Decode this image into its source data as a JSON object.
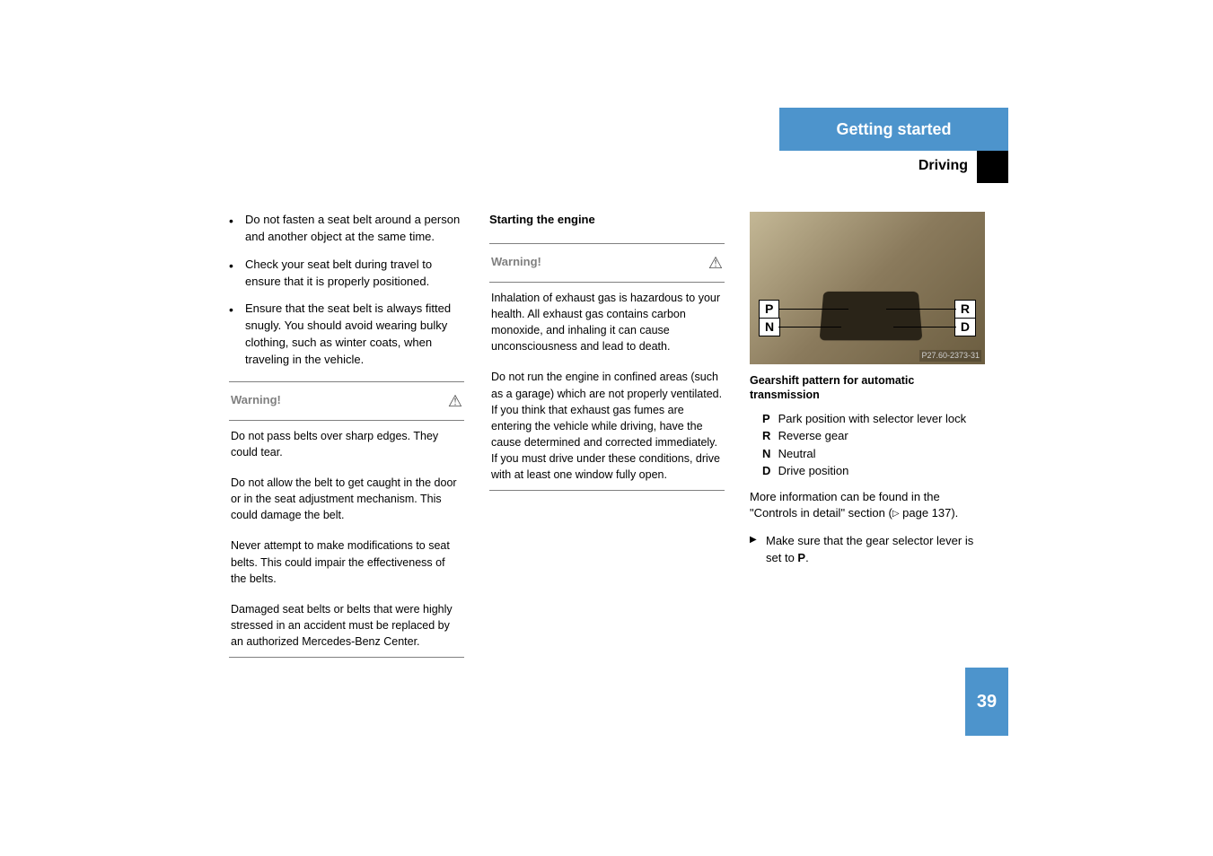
{
  "header": {
    "chapter": "Getting started",
    "section": "Driving"
  },
  "col1": {
    "bullets": [
      "Do not fasten a seat belt around a person and another object at the same time.",
      "Check your seat belt during travel to ensure that it is properly positioned.",
      "Ensure that the seat belt is always fitted snugly. You should avoid wearing bulky clothing, such as winter coats, when traveling in the vehicle."
    ],
    "warning": {
      "label": "Warning!",
      "paras": [
        "Do not pass belts over sharp edges. They could tear.",
        "Do not allow the belt to get caught in the door or in the seat adjustment mechanism. This could damage the belt.",
        "Never attempt to make modifications to seat belts. This could impair the effectiveness of the belts.",
        "Damaged seat belts or belts that were highly stressed in an accident must be replaced by an authorized Mercedes-Benz Center."
      ]
    }
  },
  "col2": {
    "title": "Starting the engine",
    "warning": {
      "label": "Warning!",
      "paras": [
        "Inhalation of exhaust gas is hazardous to your health. All exhaust gas contains carbon monoxide, and inhaling it can cause unconsciousness and lead to death.",
        "Do not run the engine in confined areas (such as a garage) which are not properly ventilated. If you think that exhaust gas fumes are entering the vehicle while driving, have the cause determined and corrected immediately. If you must drive under these conditions, drive with at least one window fully open."
      ]
    }
  },
  "col3": {
    "figure": {
      "P": "P",
      "N": "N",
      "R": "R",
      "D": "D",
      "code": "P27.60-2373-31"
    },
    "caption": "Gearshift pattern for automatic transmission",
    "gears": [
      {
        "g": "P",
        "label": "Park position with selector lever lock"
      },
      {
        "g": "R",
        "label": "Reverse gear"
      },
      {
        "g": "N",
        "label": "Neutral"
      },
      {
        "g": "D",
        "label": "Drive position"
      }
    ],
    "more1": "More information can be found in the \"Controls in detail\" section (",
    "more2": " page 137).",
    "action1": "Make sure that the gear selector lever is set to ",
    "actionBold": "P",
    "action2": "."
  },
  "pageNumber": "39"
}
